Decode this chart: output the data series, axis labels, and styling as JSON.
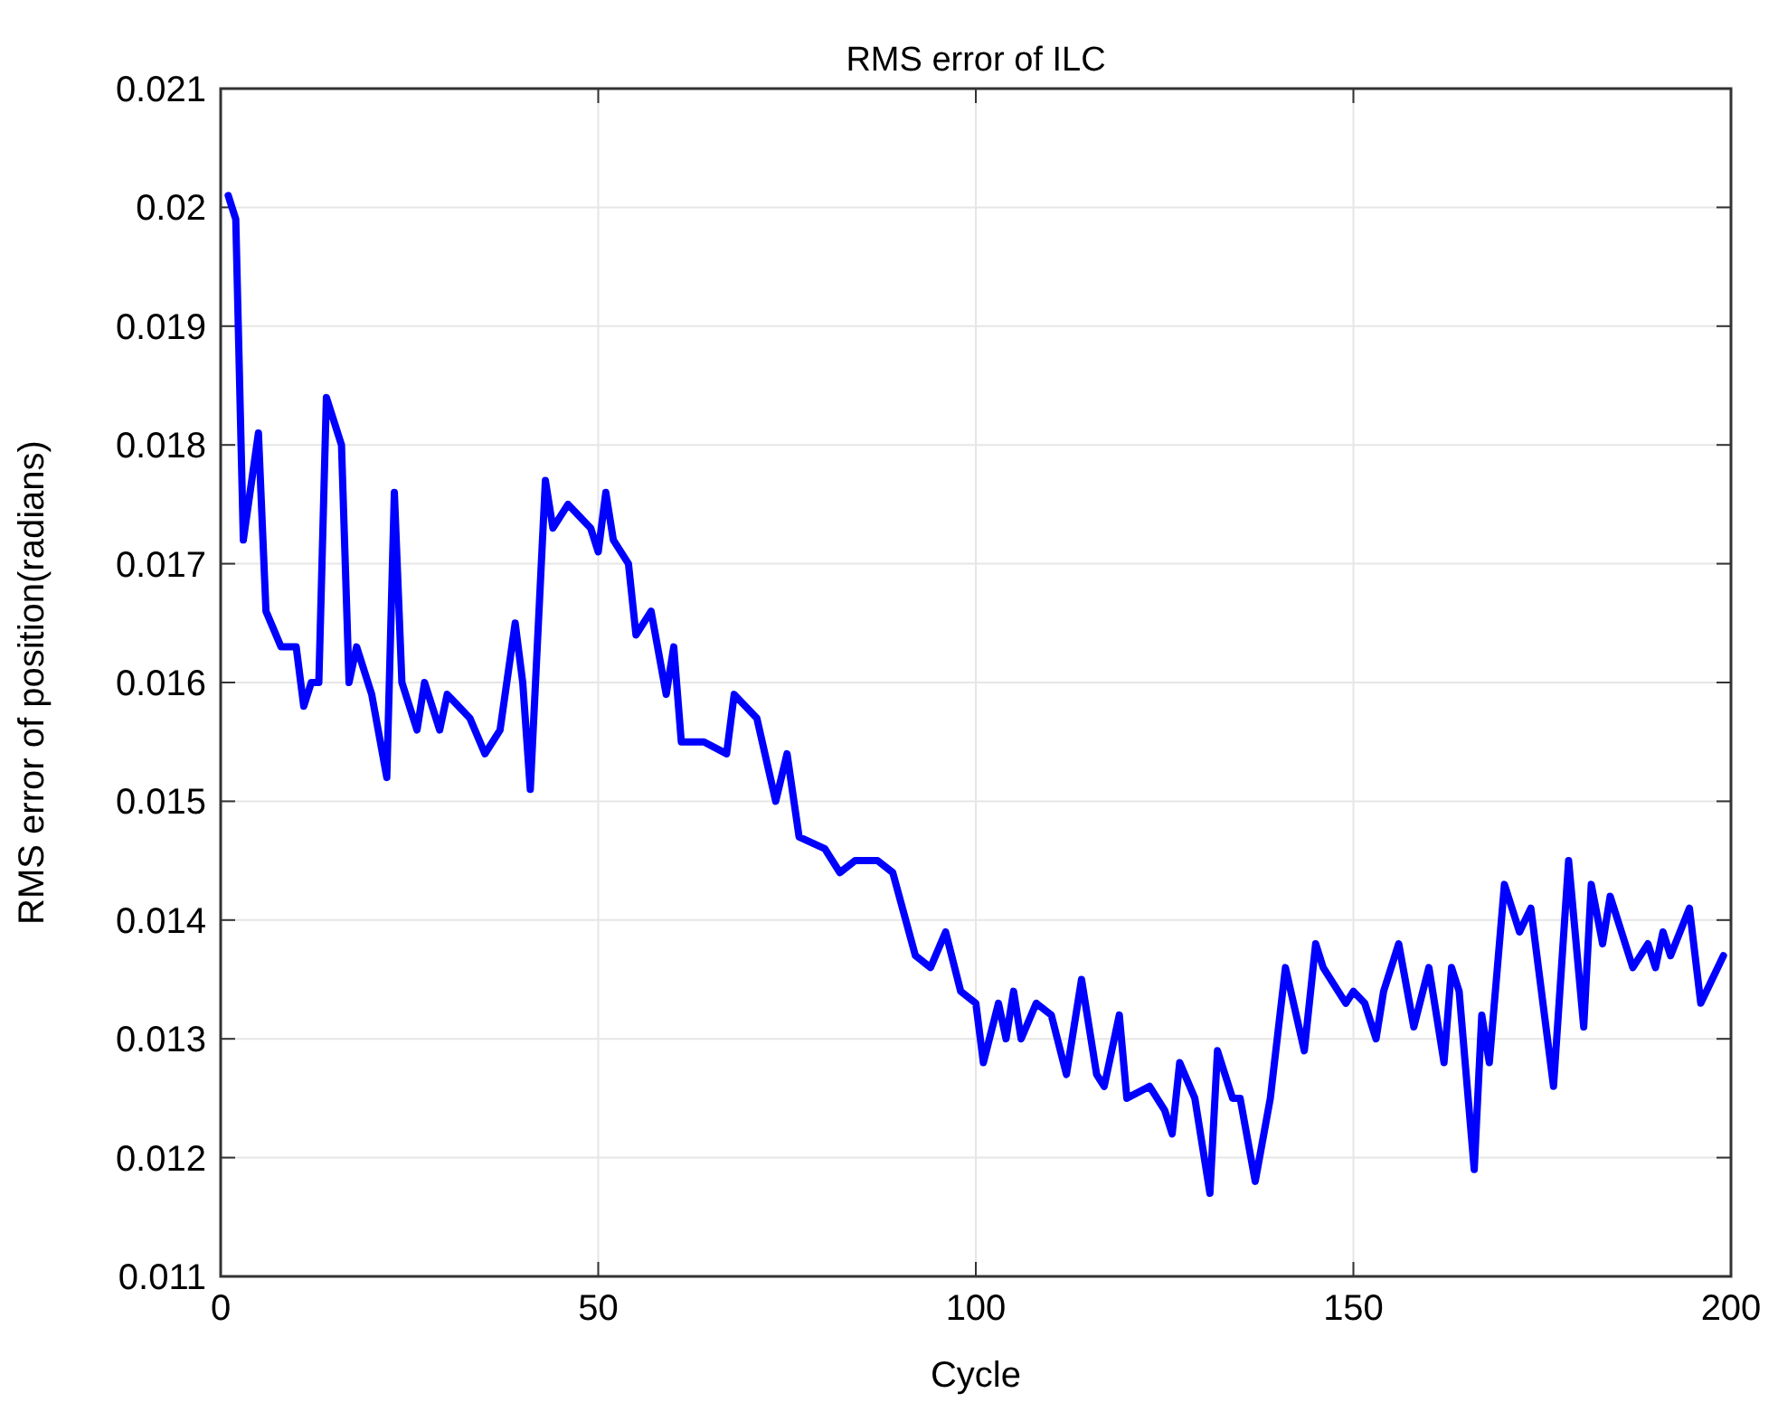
{
  "chart_data": {
    "type": "line",
    "title": "RMS error of ILC",
    "xlabel": "Cycle",
    "ylabel": "RMS error of position(radians)",
    "xlim": [
      0,
      200
    ],
    "xticks": [
      0,
      50,
      100,
      150,
      200
    ],
    "ylim": [
      0.011,
      0.021
    ],
    "yticks": [
      0.011,
      0.012,
      0.013,
      0.014,
      0.015,
      0.016,
      0.017,
      0.018,
      0.019,
      0.02,
      0.021
    ],
    "grid": true,
    "series": [
      {
        "color": "#0000ff",
        "x": [
          1,
          2,
          3,
          5,
          6,
          8,
          10,
          11,
          12,
          13,
          14,
          16,
          17,
          18,
          20,
          22,
          23,
          24,
          26,
          27,
          29,
          30,
          33,
          35,
          37,
          39,
          40,
          41,
          43,
          44,
          46,
          49,
          50,
          51,
          52,
          54,
          55,
          57,
          59,
          60,
          61,
          64,
          67,
          68,
          71,
          73.5,
          75,
          76.6,
          80,
          82,
          84,
          87,
          89,
          92,
          94,
          96,
          98,
          100,
          101,
          103,
          104,
          105,
          106,
          108,
          110,
          112,
          114,
          116,
          117,
          119,
          120,
          123,
          125,
          126,
          127,
          129,
          131,
          132,
          134,
          135,
          137,
          139,
          141,
          143.5,
          145,
          146,
          149,
          150,
          151.5,
          153,
          154,
          156,
          158,
          160,
          162,
          163,
          164,
          166,
          167,
          168,
          170,
          172,
          173.5,
          176.5,
          178.5,
          180.5,
          181.5,
          183,
          184,
          187,
          189,
          190,
          191,
          192,
          194.5,
          196,
          199
        ],
        "values": [
          0.0201,
          0.0199,
          0.0172,
          0.0181,
          0.0166,
          0.0163,
          0.0163,
          0.0158,
          0.016,
          0.016,
          0.0184,
          0.018,
          0.016,
          0.0163,
          0.0159,
          0.0152,
          0.0176,
          0.016,
          0.0156,
          0.016,
          0.0156,
          0.0159,
          0.0157,
          0.0154,
          0.0156,
          0.0165,
          0.016,
          0.0151,
          0.0177,
          0.0173,
          0.0175,
          0.0173,
          0.0171,
          0.0176,
          0.0172,
          0.017,
          0.0164,
          0.0166,
          0.0159,
          0.0163,
          0.0155,
          0.0155,
          0.0154,
          0.0159,
          0.0157,
          0.015,
          0.0154,
          0.0147,
          0.0146,
          0.0144,
          0.0145,
          0.0145,
          0.0144,
          0.0137,
          0.0136,
          0.0139,
          0.0134,
          0.0133,
          0.0128,
          0.0133,
          0.013,
          0.0134,
          0.013,
          0.0133,
          0.0132,
          0.0127,
          0.0135,
          0.0127,
          0.0126,
          0.0132,
          0.0125,
          0.0126,
          0.0124,
          0.0122,
          0.0128,
          0.0125,
          0.0117,
          0.0129,
          0.0125,
          0.0125,
          0.0118,
          0.0125,
          0.0136,
          0.0129,
          0.0138,
          0.0136,
          0.0133,
          0.0134,
          0.0133,
          0.013,
          0.0134,
          0.0138,
          0.0131,
          0.0136,
          0.0128,
          0.0136,
          0.0134,
          0.0119,
          0.0132,
          0.0128,
          0.0143,
          0.0139,
          0.0141,
          0.0126,
          0.0145,
          0.0131,
          0.0143,
          0.0138,
          0.0142,
          0.0136,
          0.0138,
          0.0136,
          0.0139,
          0.0137,
          0.0141,
          0.0133,
          0.0137
        ]
      }
    ]
  }
}
